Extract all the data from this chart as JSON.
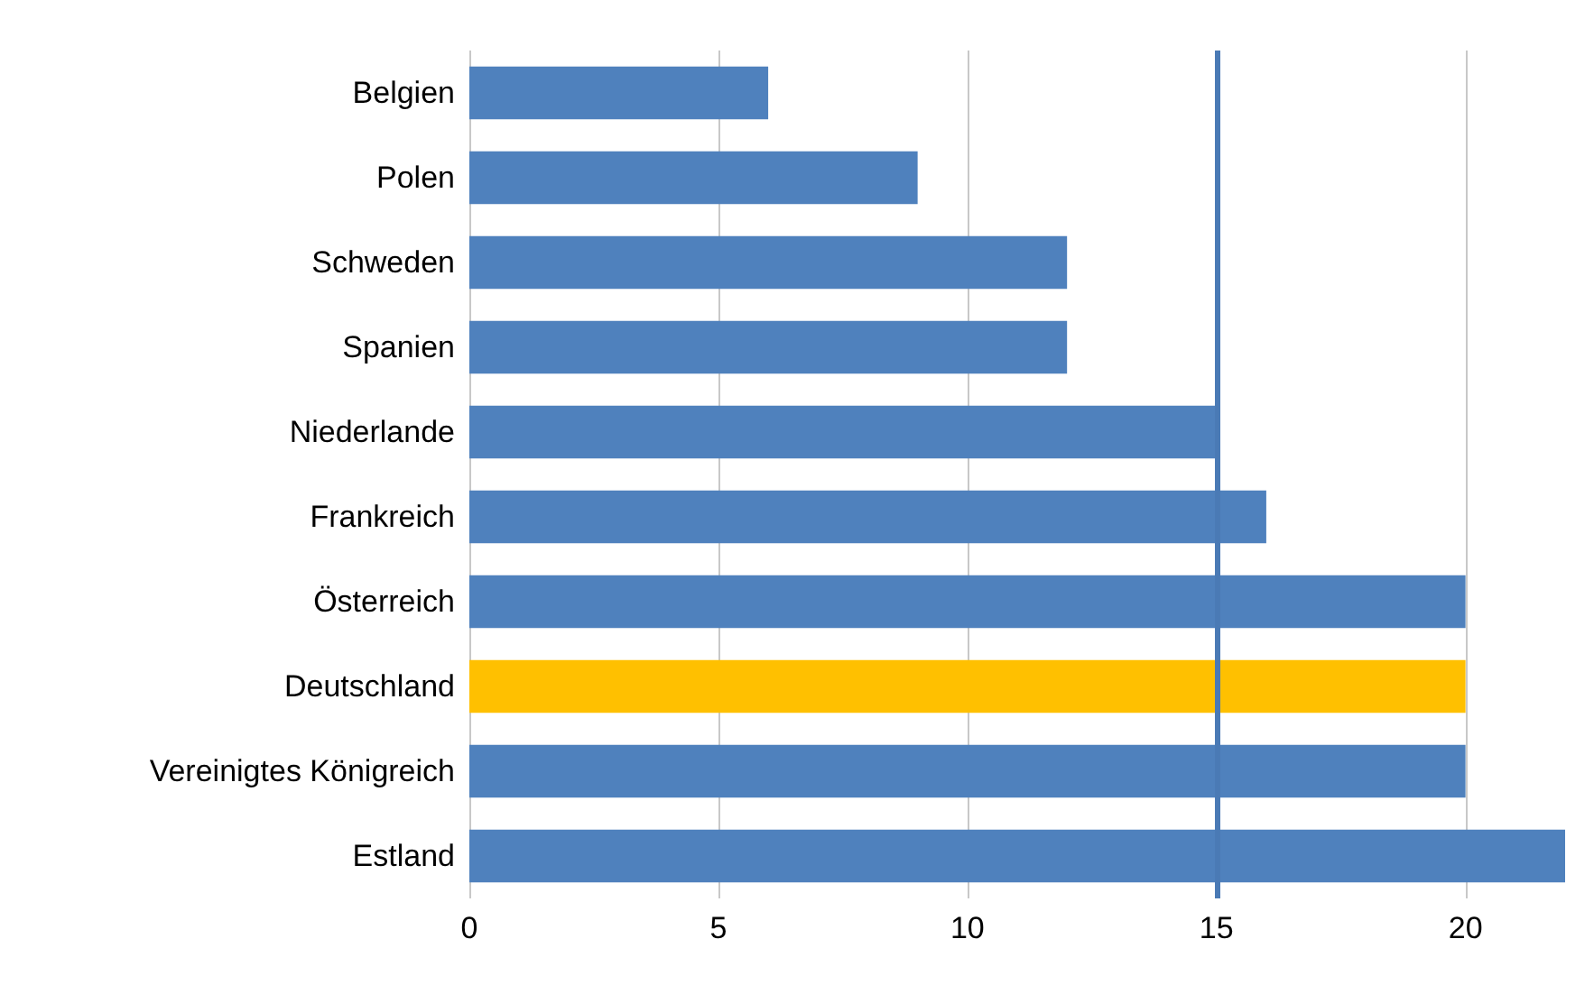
{
  "chart_data": {
    "type": "bar",
    "orientation": "horizontal",
    "categories": [
      "Belgien",
      "Polen",
      "Schweden",
      "Spanien",
      "Niederlande",
      "Frankreich",
      "Österreich",
      "Deutschland",
      "Vereinigtes Königreich",
      "Estland"
    ],
    "values": [
      6,
      9,
      12,
      12,
      15,
      16,
      20,
      20,
      20,
      22
    ],
    "colors": [
      "#4f81bd",
      "#4f81bd",
      "#4f81bd",
      "#4f81bd",
      "#4f81bd",
      "#4f81bd",
      "#4f81bd",
      "#ffc000",
      "#4f81bd",
      "#4f81bd"
    ],
    "xlim": [
      0,
      22
    ],
    "xticks": [
      0,
      5,
      10,
      15,
      20
    ],
    "grid": "x",
    "ref_lines": [
      {
        "axis": "x",
        "value": 15,
        "color": "#4a7ab5"
      }
    ]
  }
}
